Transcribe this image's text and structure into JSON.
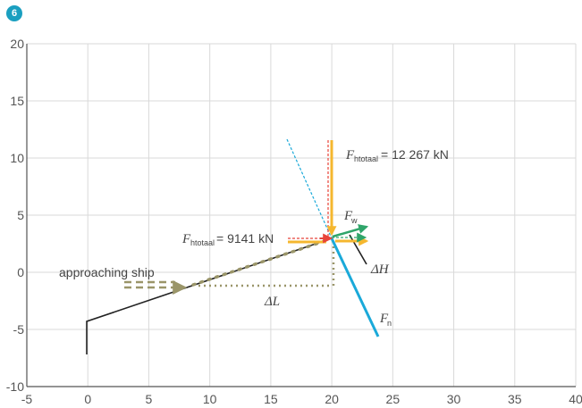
{
  "badge": "6",
  "axes": {
    "x_ticks": [
      "-5",
      "0",
      "5",
      "10",
      "15",
      "20",
      "25",
      "30",
      "35",
      "40"
    ],
    "y_ticks": [
      "20",
      "15",
      "10",
      "5",
      "0",
      "-5",
      "-10"
    ],
    "xlim": [
      -5,
      40
    ],
    "ylim": [
      -10,
      20
    ],
    "grid": true
  },
  "labels": {
    "approaching_ship": "approaching ship",
    "delta_l": "ΔL",
    "delta_h": "ΔH",
    "f_letter": "F",
    "htotaal_sub": "htotaal",
    "w_sub": "w",
    "n_sub": "n",
    "f_htotaal_top_value": "= 12 267 kN",
    "f_htotaal_left_value": "= 9141 kN"
  },
  "colors": {
    "grid": "#d9d9d9",
    "axis": "#555555",
    "path": "#222222",
    "dots": "#9a9569",
    "arrow_olive": "#9a9569",
    "yellow": "#f5b72f",
    "red": "#e8443a",
    "green": "#2fa56a",
    "blue": "#1aa9d9",
    "badge": "#1a9fc0"
  }
}
